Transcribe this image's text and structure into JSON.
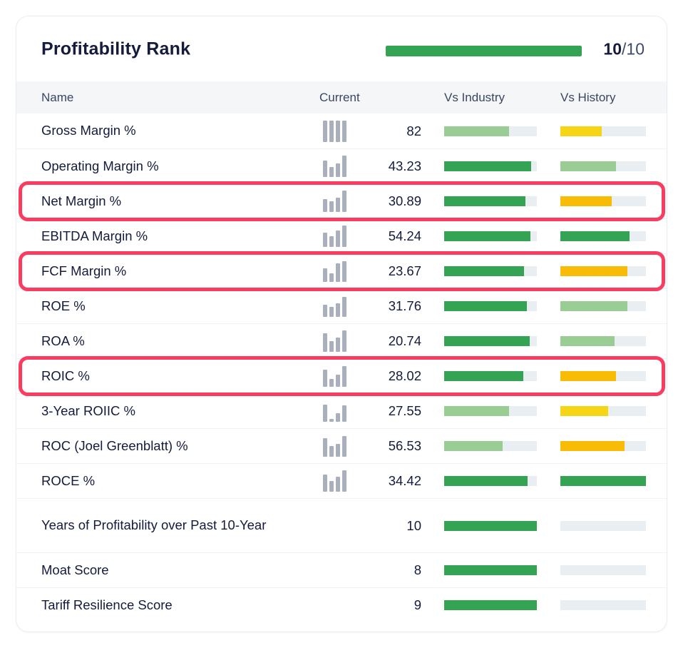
{
  "colors": {
    "green": "#34A353",
    "light_green": "#9ACD94",
    "yellow": "#F5D515",
    "amber": "#F8BC07",
    "track": "#E9EEF2",
    "histogram_gray": "#A9AFBC",
    "highlight_red": "#FA3C60",
    "navy_text": "#141B3C",
    "header_text": "#3B4563"
  },
  "card": {
    "title": "Profitability Rank",
    "score_value": "10",
    "score_max": "/10",
    "progress": {
      "fraction": 1.0,
      "color_key": "green"
    }
  },
  "table": {
    "headers": [
      "Name",
      "Current",
      "Vs Industry",
      "Vs History"
    ],
    "rows": [
      {
        "label": "Gross Margin %",
        "current": "82",
        "histogram": [
          1,
          1,
          1,
          1
        ],
        "vs_industry": {
          "color": "light_green",
          "fill": 0.7
        },
        "vs_history": {
          "color": "yellow",
          "fill": 0.48
        },
        "highlighted": false
      },
      {
        "label": "Operating Margin %",
        "current": "43.23",
        "histogram": [
          0.78,
          0.45,
          0.62,
          1
        ],
        "vs_industry": {
          "color": "green",
          "fill": 0.94
        },
        "vs_history": {
          "color": "light_green",
          "fill": 0.65
        },
        "highlighted": false
      },
      {
        "label": "Net Margin %",
        "current": "30.89",
        "histogram": [
          0.6,
          0.5,
          0.65,
          1
        ],
        "vs_industry": {
          "color": "green",
          "fill": 0.88
        },
        "vs_history": {
          "color": "amber",
          "fill": 0.6
        },
        "highlighted": true
      },
      {
        "label": "EBITDA Margin %",
        "current": "54.24",
        "histogram": [
          0.65,
          0.5,
          0.78,
          1
        ],
        "vs_industry": {
          "color": "green",
          "fill": 0.93
        },
        "vs_history": {
          "color": "green",
          "fill": 0.81
        },
        "highlighted": false
      },
      {
        "label": "FCF Margin %",
        "current": "23.67",
        "histogram": [
          0.62,
          0.4,
          0.88,
          0.97
        ],
        "vs_industry": {
          "color": "green",
          "fill": 0.86
        },
        "vs_history": {
          "color": "amber",
          "fill": 0.78
        },
        "highlighted": true
      },
      {
        "label": "ROE %",
        "current": "31.76",
        "histogram": [
          0.55,
          0.45,
          0.62,
          0.92
        ],
        "vs_industry": {
          "color": "green",
          "fill": 0.89
        },
        "vs_history": {
          "color": "light_green",
          "fill": 0.78
        },
        "highlighted": false
      },
      {
        "label": "ROA %",
        "current": "20.74",
        "histogram": [
          0.85,
          0.5,
          0.65,
          1
        ],
        "vs_industry": {
          "color": "green",
          "fill": 0.92
        },
        "vs_history": {
          "color": "light_green",
          "fill": 0.63
        },
        "highlighted": false
      },
      {
        "label": "ROIC %",
        "current": "28.02",
        "histogram": [
          0.8,
          0.35,
          0.55,
          0.95
        ],
        "vs_industry": {
          "color": "green",
          "fill": 0.85
        },
        "vs_history": {
          "color": "amber",
          "fill": 0.65
        },
        "highlighted": true
      },
      {
        "label": "3-Year ROIIC %",
        "current": "27.55",
        "histogram": [
          0.8,
          0.12,
          0.4,
          0.75
        ],
        "vs_industry": {
          "color": "light_green",
          "fill": 0.7
        },
        "vs_history": {
          "color": "yellow",
          "fill": 0.56
        },
        "highlighted": false
      },
      {
        "label": "ROC (Joel Greenblatt) %",
        "current": "56.53",
        "histogram": [
          0.85,
          0.5,
          0.6,
          0.95
        ],
        "vs_industry": {
          "color": "light_green",
          "fill": 0.63
        },
        "vs_history": {
          "color": "amber",
          "fill": 0.75
        },
        "highlighted": false
      },
      {
        "label": "ROCE %",
        "current": "34.42",
        "histogram": [
          0.8,
          0.5,
          0.7,
          1
        ],
        "vs_industry": {
          "color": "green",
          "fill": 0.9
        },
        "vs_history": {
          "color": "green",
          "fill": 1.0
        },
        "highlighted": false
      },
      {
        "label": "Years of Profitability over Past 10-Year",
        "current": "10",
        "histogram": null,
        "vs_industry": {
          "color": "green",
          "fill": 1.0
        },
        "vs_history": {
          "color": "none",
          "fill": 0
        },
        "highlighted": false,
        "tall": true
      },
      {
        "label": "Moat Score",
        "current": "8",
        "histogram": null,
        "vs_industry": {
          "color": "green",
          "fill": 1.0
        },
        "vs_history": {
          "color": "none",
          "fill": 0
        },
        "highlighted": false
      },
      {
        "label": "Tariff Resilience Score",
        "current": "9",
        "histogram": null,
        "vs_industry": {
          "color": "green",
          "fill": 1.0
        },
        "vs_history": {
          "color": "none",
          "fill": 0
        },
        "highlighted": false
      }
    ]
  }
}
